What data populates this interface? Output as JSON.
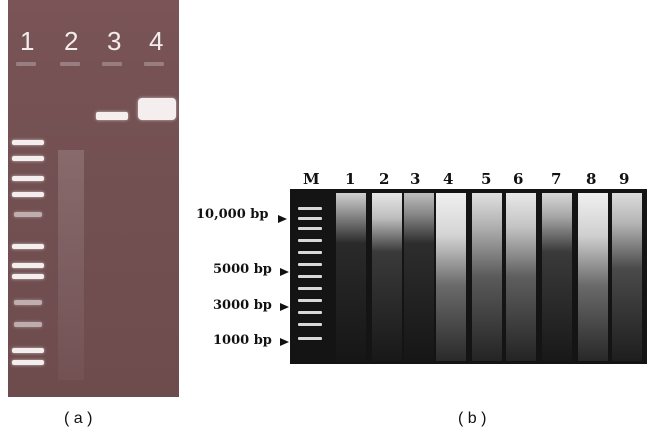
{
  "panel_a": {
    "lane_labels": [
      "1",
      "2",
      "3",
      "4"
    ],
    "caption": "( a )"
  },
  "panel_b": {
    "lane_labels": [
      "M",
      "1",
      "2",
      "3",
      "4",
      "5",
      "6",
      "7",
      "8",
      "9"
    ],
    "size_markers": [
      "10,000 bp",
      "5000 bp",
      "3000 bp",
      "1000 bp"
    ],
    "caption": "( b )"
  }
}
